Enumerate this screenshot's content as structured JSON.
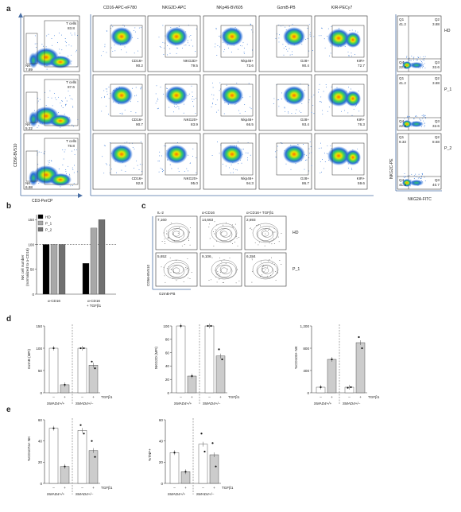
{
  "panel_labels": {
    "a": "a",
    "b": "b",
    "c": "c",
    "d": "d",
    "e": "e"
  },
  "panel_a": {
    "x_axis_label": "CD3-PerCP",
    "y_axis_label": "CD56-BV510",
    "column_headers": [
      "CD16-APC-eF780",
      "NKG2D-APC",
      "NKp46-BV605",
      "GzmB-PB",
      "KIR-PECy7"
    ],
    "rows": [
      {
        "tcell_label": "T cells",
        "tcell_value": "83.8",
        "nk_label": "NK",
        "nk_value": "7.89",
        "gates": [
          {
            "label": "CD16+",
            "value": "90.2"
          },
          {
            "label": "NKG2D+",
            "value": "79.5"
          },
          {
            "label": "Nkp46+",
            "value": "73.6"
          },
          {
            "label": "Gz8+",
            "value": "90.4"
          },
          {
            "label": "KIR+",
            "value": "72.7"
          }
        ],
        "quadrants": {
          "Q1": "41.2",
          "Q2": "3.88",
          "Q3": "32.6",
          "Q4": "22.3"
        },
        "sample": "HD"
      },
      {
        "tcell_label": "T cells",
        "tcell_value": "87.6",
        "nk_label": "NK",
        "nk_value": "5.22",
        "gates": [
          {
            "label": "CD16+",
            "value": "90.7"
          },
          {
            "label": "NKG20+",
            "value": "83.9"
          },
          {
            "label": "Nkp46+",
            "value": "66.5"
          },
          {
            "label": "Gz8+",
            "value": "93.4"
          },
          {
            "label": "KIR+",
            "value": "76.3"
          }
        ],
        "quadrants": {
          "Q1": "41.2",
          "Q2": "3.88",
          "Q3": "32.6",
          "Q4": "22.3"
        },
        "sample": "P_1"
      },
      {
        "tcell_label": "T cells",
        "tcell_value": "78.8",
        "nk_label": "NK",
        "nk_value": "6.68",
        "gates": [
          {
            "label": "CD16+",
            "value": "92.8"
          },
          {
            "label": "NKG20+",
            "value": "95.0"
          },
          {
            "label": "Nkp46+",
            "value": "94.3"
          },
          {
            "label": "Gz8+",
            "value": "86.7"
          },
          {
            "label": "KIR+",
            "value": "59.6"
          }
        ],
        "quadrants": {
          "Q1": "9.33",
          "Q2": "8.68",
          "Q3": "40.7",
          "Q4": "41.3"
        },
        "sample": "P_2"
      }
    ],
    "quad_x_label": "NKG2A-FITC",
    "quad_y_label": "NKG2C-PE"
  },
  "panel_b": {
    "chart_data": {
      "type": "bar",
      "ylabel": "NK cell number (normalized to α-CD16)",
      "ylim": [
        0,
        160
      ],
      "yticks": [
        "0",
        "50",
        "100",
        "150"
      ],
      "categories": [
        "α-CD16",
        "α-CD16 + TGFβ1"
      ],
      "series": [
        {
          "name": "HD",
          "values": [
            100,
            62
          ],
          "color": "#000000"
        },
        {
          "name": "P_1",
          "values": [
            100,
            133
          ],
          "color": "#a8a8a8"
        },
        {
          "name": "P_2",
          "values": [
            100,
            150
          ],
          "color": "#707070"
        }
      ],
      "reference_line": 100
    }
  },
  "panel_c": {
    "column_headers": [
      "IL-2",
      "α-CD16",
      "α-CD16+ TGFβ1"
    ],
    "rows": [
      {
        "sample": "HD",
        "counts": [
          "7,160",
          "14,663",
          "2,693"
        ]
      },
      {
        "sample": "P_1",
        "counts": [
          "5,652",
          "9,106",
          "6,284"
        ]
      }
    ],
    "x_axis_label": "GzmB-PB",
    "y_axis_label": "CD56-BV510"
  },
  "panel_d": {
    "chart_data": [
      {
        "type": "bar",
        "ylabel": "GzmB (MFI)",
        "ylim": [
          0,
          150
        ],
        "yticks": [
          "0",
          "50",
          "100",
          "150"
        ],
        "categories": [
          "SMAD4+/+ –",
          "SMAD4+/+ +",
          "SMAD4+/– –",
          "SMAD4+/– +"
        ],
        "values": [
          100,
          18,
          100,
          62
        ],
        "colors": [
          "#ffffff",
          "#cccccc",
          "#ffffff",
          "#cccccc"
        ]
      },
      {
        "type": "bar",
        "ylabel": "NKG2D (MFI)",
        "ylim": [
          0,
          100
        ],
        "yticks": [
          "0",
          "20",
          "40",
          "60",
          "80",
          "100"
        ],
        "categories": [
          "SMAD4+/+ –",
          "SMAD4+/+ +",
          "SMAD4+/– –",
          "SMAD4+/– +"
        ],
        "values": [
          100,
          25,
          100,
          55
        ],
        "colors": [
          "#ffffff",
          "#cccccc",
          "#ffffff",
          "#cccccc"
        ]
      },
      {
        "type": "bar",
        "ylabel": "%CD103+ NK",
        "ylim": [
          0,
          1200
        ],
        "yticks": [
          "0",
          "400",
          "800",
          "1,200"
        ],
        "categories": [
          "SMAD4+/+ –",
          "SMAD4+/+ +",
          "SMAD4+/– –",
          "SMAD4+/– +"
        ],
        "values": [
          100,
          600,
          100,
          900
        ],
        "colors": [
          "#ffffff",
          "#cccccc",
          "#ffffff",
          "#cccccc"
        ]
      }
    ],
    "treatment_label": "TGFβ1",
    "minus": "–",
    "plus": "+",
    "genotype_a": "SMAD4+/+",
    "genotype_b": "SMAD4+/–"
  },
  "panel_e": {
    "chart_data": [
      {
        "type": "bar",
        "ylabel": "%CD107a+ NK",
        "ylim": [
          0,
          60
        ],
        "yticks": [
          "0",
          "20",
          "40",
          "60"
        ],
        "categories": [
          "SMAD4+/+ –",
          "SMAD4+/+ +",
          "SMAD4+/– –",
          "SMAD4+/– +"
        ],
        "values": [
          52,
          16,
          50,
          31
        ],
        "colors": [
          "#ffffff",
          "#cccccc",
          "#ffffff",
          "#cccccc"
        ]
      },
      {
        "type": "bar",
        "ylabel": "%TNF+",
        "ylim": [
          0,
          60
        ],
        "yticks": [
          "0",
          "20",
          "40",
          "60"
        ],
        "categories": [
          "SMAD4+/+ –",
          "SMAD4+/+ +",
          "SMAD4+/– –",
          "SMAD4+/– +"
        ],
        "values": [
          29,
          11,
          37,
          27
        ],
        "colors": [
          "#ffffff",
          "#cccccc",
          "#ffffff",
          "#cccccc"
        ]
      }
    ],
    "treatment_label": "TGFβ1",
    "minus": "–",
    "plus": "+",
    "genotype_a": "SMAD4+/+",
    "genotype_b": "SMAD4+/–"
  }
}
